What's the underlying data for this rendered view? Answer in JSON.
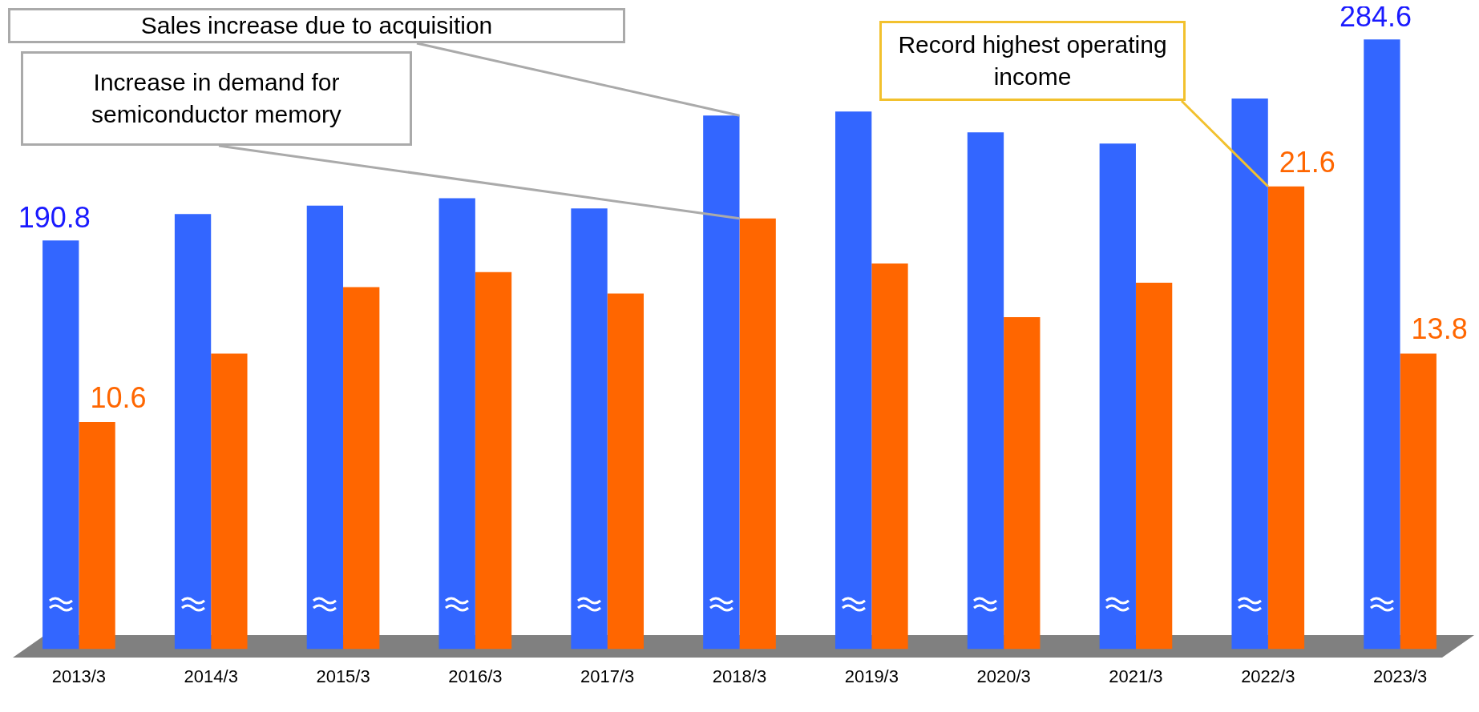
{
  "chart_data": {
    "type": "bar",
    "categories": [
      "2013/3",
      "2014/3",
      "2015/3",
      "2016/3",
      "2017/3",
      "2018/3",
      "2019/3",
      "2020/3",
      "2021/3",
      "2022/3",
      "2023/3"
    ],
    "series": [
      {
        "color": "#3366ff",
        "values": [
          190.8,
          203.1,
          207.0,
          210.5,
          205.7,
          249.1,
          250.9,
          241.2,
          236.0,
          257.0,
          284.6
        ],
        "value_labels": [
          "190.8",
          null,
          null,
          null,
          null,
          null,
          null,
          null,
          null,
          null,
          "284.6"
        ]
      },
      {
        "color": "#ff6600",
        "axis": "y2",
        "values": [
          10.6,
          13.8,
          16.9,
          17.6,
          16.6,
          20.1,
          18.0,
          15.5,
          17.1,
          21.6,
          13.8
        ],
        "value_labels": [
          "10.6",
          null,
          null,
          null,
          null,
          null,
          null,
          null,
          null,
          "21.6",
          "13.8"
        ]
      }
    ],
    "tick_labels": "x",
    "grid": false,
    "legend": false,
    "annotations": [
      {
        "text": "Sales increase due to acquisition",
        "x": "2018/3",
        "y": 249.1
      },
      {
        "text": "Increase in demand for semiconductor memory",
        "x": "2018/3",
        "y": 201
      },
      {
        "text": "Record highest operating income",
        "x": "2022/3",
        "y": 216
      }
    ]
  }
}
